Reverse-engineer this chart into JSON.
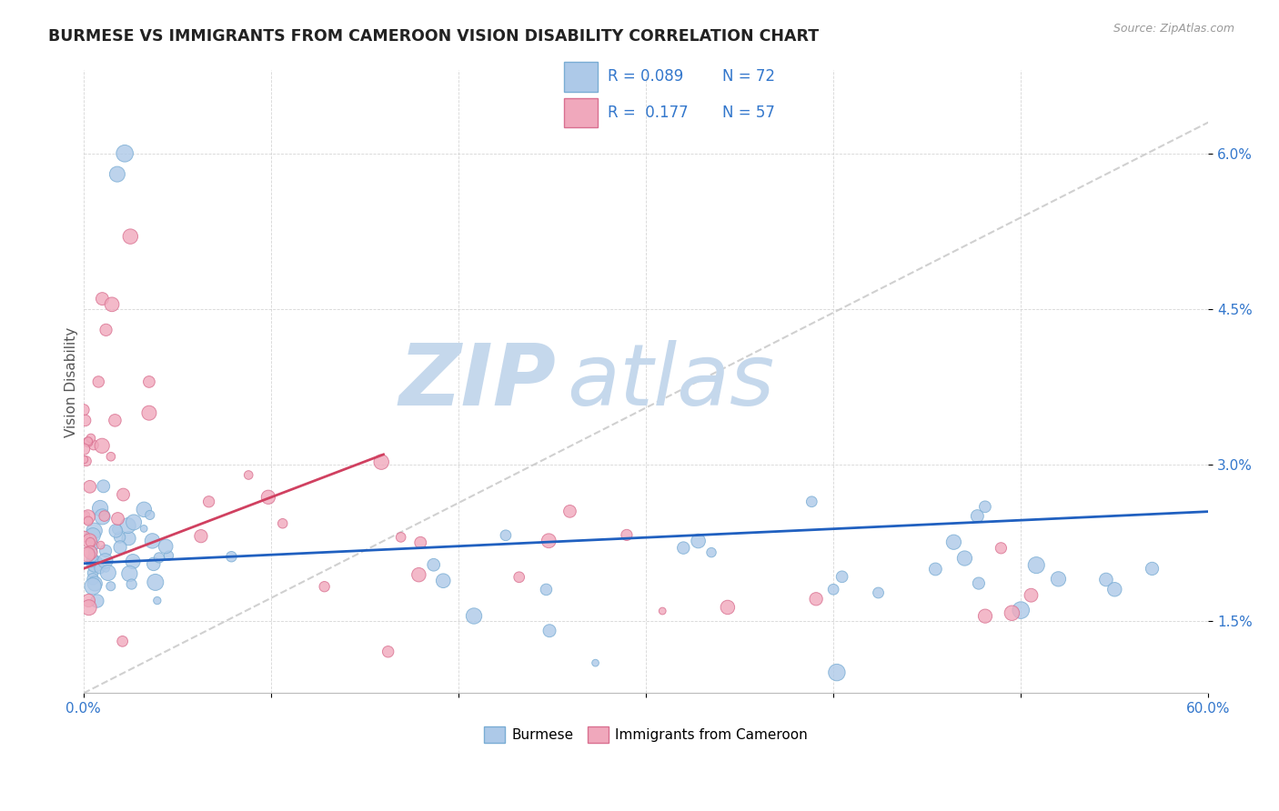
{
  "title": "BURMESE VS IMMIGRANTS FROM CAMEROON VISION DISABILITY CORRELATION CHART",
  "source": "Source: ZipAtlas.com",
  "ylabel": "Vision Disability",
  "xlim": [
    0.0,
    0.6
  ],
  "ylim": [
    0.008,
    0.068
  ],
  "yticks": [
    0.015,
    0.03,
    0.045,
    0.06
  ],
  "yticklabels": [
    "1.5%",
    "3.0%",
    "4.5%",
    "6.0%"
  ],
  "burmese_color": "#adc9e8",
  "cameroon_color": "#f0a8bc",
  "burmese_edge": "#7aadd4",
  "cameroon_edge": "#d97090",
  "trend_blue": "#2060c0",
  "trend_pink": "#d04060",
  "trend_gray": "#c8c8c8",
  "legend_R_blue": "0.089",
  "legend_N_blue": "72",
  "legend_R_pink": "0.177",
  "legend_N_pink": "57",
  "watermark_zip": "ZIP",
  "watermark_atlas": "atlas",
  "watermark_color": "#c5d8ec",
  "background_color": "#ffffff",
  "blue_R": 0.089,
  "pink_R": 0.177,
  "blue_trend_x0": 0.0,
  "blue_trend_y0": 0.0205,
  "blue_trend_x1": 0.6,
  "blue_trend_y1": 0.0255,
  "pink_trend_x0": 0.0,
  "pink_trend_y0": 0.02,
  "pink_trend_x1": 0.16,
  "pink_trend_y1": 0.031,
  "gray_trend_x0": 0.0,
  "gray_trend_y0": 0.008,
  "gray_trend_x1": 0.6,
  "gray_trend_y1": 0.063
}
